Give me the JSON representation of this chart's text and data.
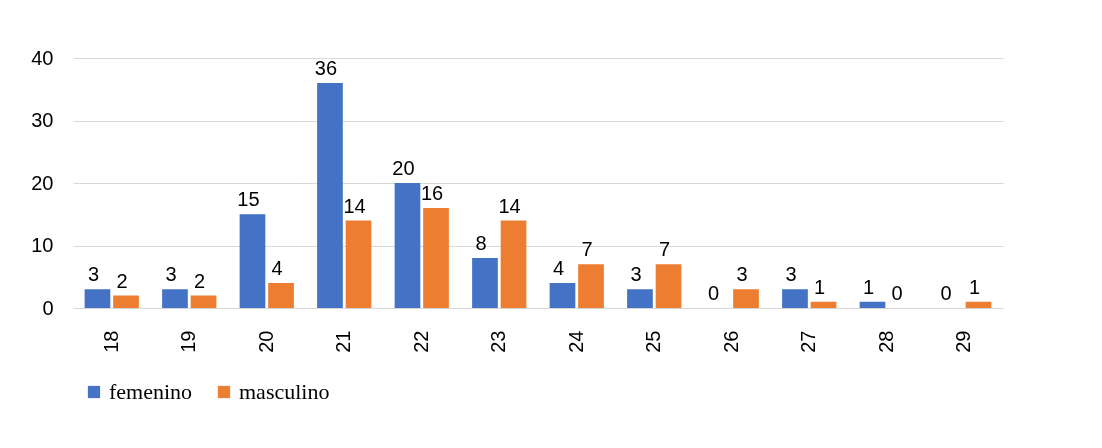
{
  "chart_data": {
    "type": "bar",
    "categories": [
      "18",
      "19",
      "20",
      "21",
      "22",
      "23",
      "24",
      "25",
      "26",
      "27",
      "28",
      "29"
    ],
    "series": [
      {
        "name": "femenino",
        "color": "#4472c4",
        "values": [
          3,
          3,
          15,
          36,
          20,
          8,
          4,
          3,
          0,
          3,
          1,
          0
        ]
      },
      {
        "name": "masculino",
        "color": "#ed7d31",
        "values": [
          2,
          2,
          4,
          14,
          16,
          14,
          7,
          7,
          3,
          1,
          0,
          1
        ]
      }
    ],
    "ylim": [
      0,
      40
    ],
    "yticks": [
      0,
      10,
      20,
      30,
      40
    ],
    "grid": "y",
    "legend": "bottom",
    "data_labels": true
  }
}
